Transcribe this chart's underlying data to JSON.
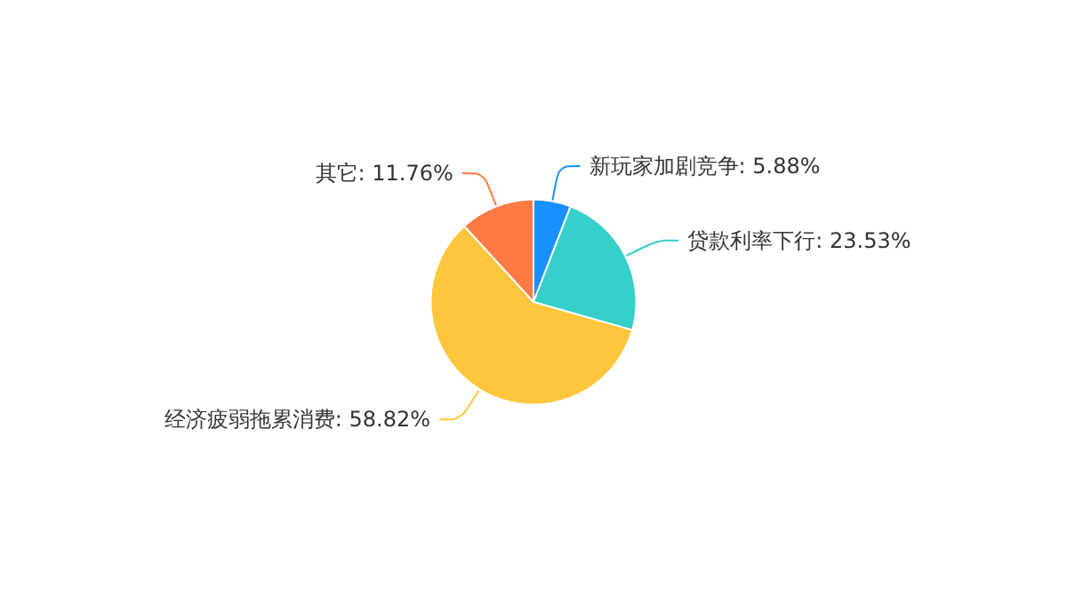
{
  "chart_data": {
    "type": "pie",
    "categories": [
      "新玩家加剧竞争",
      "贷款利率下行",
      "经济疲弱拖累消费",
      "其它"
    ],
    "values": [
      5.88,
      23.53,
      58.82,
      11.76
    ],
    "value_labels": [
      "5.88%",
      "23.53%",
      "58.82%",
      "11.76%"
    ],
    "colors": [
      "#1890ff",
      "#36cfc9",
      "#ffc53d",
      "#ff7a45"
    ]
  }
}
